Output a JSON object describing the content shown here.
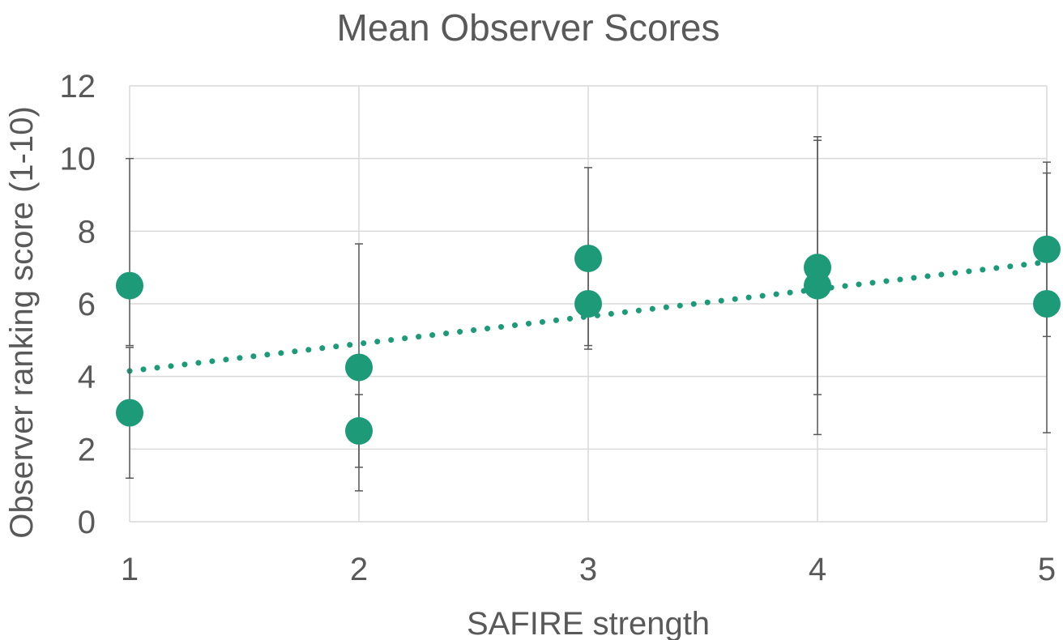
{
  "chart_data": {
    "type": "scatter",
    "title": "Mean Observer Scores",
    "xlabel": "SAFIRE strength",
    "ylabel": "Observer ranking score (1-10)",
    "xlim": [
      1,
      5
    ],
    "ylim": [
      0,
      12
    ],
    "x_ticks": [
      "1",
      "2",
      "3",
      "4",
      "5"
    ],
    "y_ticks": [
      "0",
      "2",
      "4",
      "6",
      "8",
      "10",
      "12"
    ],
    "grid": true,
    "colors": {
      "points": "#1d9a78",
      "error_bars": "#595959",
      "grid": "#d9d9d9",
      "text": "#595959"
    },
    "points": [
      {
        "x": 1,
        "y": 6.5,
        "err_low": 4.85,
        "err_high": 10.0
      },
      {
        "x": 1,
        "y": 3.0,
        "err_low": 1.2,
        "err_high": 4.8
      },
      {
        "x": 2,
        "y": 4.25,
        "err_low": 0.85,
        "err_high": 7.65
      },
      {
        "x": 2,
        "y": 2.5,
        "err_low": 1.5,
        "err_high": 3.5
      },
      {
        "x": 3,
        "y": 7.25,
        "err_low": 4.75,
        "err_high": 9.75
      },
      {
        "x": 3,
        "y": 6.0,
        "err_low": 4.85,
        "err_high": 7.2
      },
      {
        "x": 4,
        "y": 7.0,
        "err_low": 3.5,
        "err_high": 10.5
      },
      {
        "x": 4,
        "y": 6.5,
        "err_low": 2.4,
        "err_high": 10.6
      },
      {
        "x": 5,
        "y": 7.5,
        "err_low": 5.1,
        "err_high": 9.9
      },
      {
        "x": 5,
        "y": 6.0,
        "err_low": 2.45,
        "err_high": 9.6
      }
    ],
    "trendline": {
      "type": "linear",
      "x": [
        1,
        5
      ],
      "y": [
        4.15,
        7.15
      ]
    }
  }
}
